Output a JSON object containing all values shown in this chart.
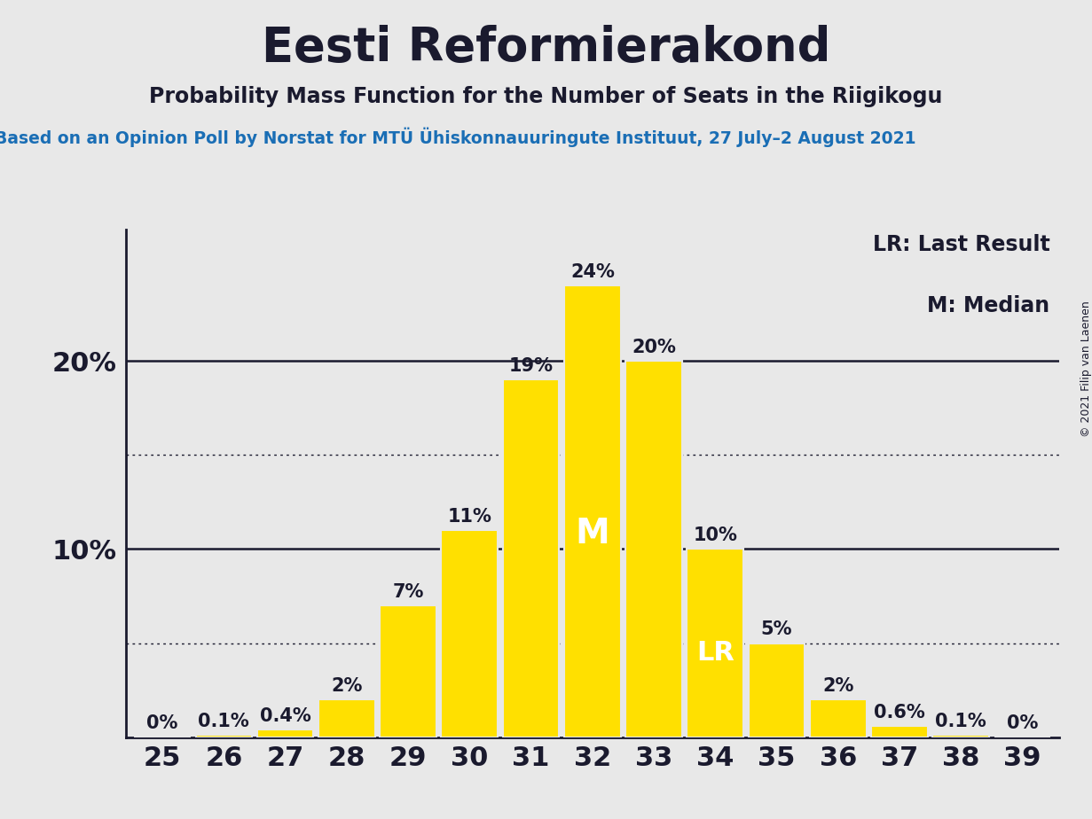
{
  "title": "Eesti Reformierakond",
  "subtitle": "Probability Mass Function for the Number of Seats in the Riigikogu",
  "source_line": "Based on an Opinion Poll by Norstat for MTÜ Ühiskonnauuringute Instituut, 27 July–2 August 2021",
  "copyright": "© 2021 Filip van Laenen",
  "categories": [
    25,
    26,
    27,
    28,
    29,
    30,
    31,
    32,
    33,
    34,
    35,
    36,
    37,
    38,
    39
  ],
  "values": [
    0.0,
    0.1,
    0.4,
    2.0,
    7.0,
    11.0,
    19.0,
    24.0,
    20.0,
    10.0,
    5.0,
    2.0,
    0.6,
    0.1,
    0.0
  ],
  "labels": [
    "0%",
    "0.1%",
    "0.4%",
    "2%",
    "7%",
    "11%",
    "19%",
    "24%",
    "20%",
    "10%",
    "5%",
    "2%",
    "0.6%",
    "0.1%",
    "0%"
  ],
  "bar_color": "#FFE000",
  "background_color": "#E8E8E8",
  "text_color": "#1a1a2e",
  "source_color": "#1a6eb5",
  "ylim_max": 27,
  "median_seat": 32,
  "lr_seat": 34,
  "legend_lr": "LR: Last Result",
  "legend_m": "M: Median",
  "title_fontsize": 38,
  "subtitle_fontsize": 17,
  "source_fontsize": 13.5,
  "bar_label_fontsize": 15,
  "axis_tick_fontsize": 22,
  "legend_fontsize": 17,
  "copyright_fontsize": 9,
  "median_label_fontsize": 28,
  "lr_label_fontsize": 22
}
